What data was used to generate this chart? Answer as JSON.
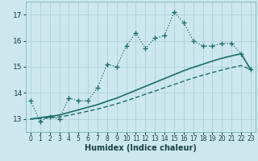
{
  "xlabel": "Humidex (Indice chaleur)",
  "background_color": "#cce8ee",
  "grid_color": "#b0d0d8",
  "line_color": "#1a6e6a",
  "x_values": [
    0,
    1,
    2,
    3,
    4,
    5,
    6,
    7,
    8,
    9,
    10,
    11,
    12,
    13,
    14,
    15,
    16,
    17,
    18,
    19,
    20,
    21,
    22,
    23
  ],
  "y_main": [
    13.7,
    12.9,
    13.1,
    13.0,
    13.8,
    13.7,
    13.7,
    14.2,
    15.1,
    15.0,
    15.8,
    16.3,
    15.7,
    16.1,
    16.2,
    17.1,
    16.7,
    16.0,
    15.8,
    15.8,
    15.9,
    15.9,
    15.5,
    14.9
  ],
  "y_trend1": [
    13.0,
    13.05,
    13.1,
    13.15,
    13.25,
    13.35,
    13.45,
    13.55,
    13.68,
    13.8,
    13.95,
    14.1,
    14.25,
    14.4,
    14.55,
    14.7,
    14.85,
    14.98,
    15.1,
    15.22,
    15.33,
    15.42,
    15.5,
    14.9
  ],
  "y_trend2": [
    13.0,
    13.02,
    13.05,
    13.08,
    13.14,
    13.22,
    13.3,
    13.38,
    13.48,
    13.58,
    13.7,
    13.82,
    13.95,
    14.07,
    14.2,
    14.32,
    14.45,
    14.57,
    14.68,
    14.78,
    14.88,
    14.97,
    15.05,
    14.9
  ],
  "ylim": [
    12.5,
    17.5
  ],
  "xlim": [
    -0.5,
    23.5
  ],
  "yticks": [
    13,
    14,
    15,
    16,
    17
  ],
  "xticks": [
    0,
    1,
    2,
    3,
    4,
    5,
    6,
    7,
    8,
    9,
    10,
    11,
    12,
    13,
    14,
    15,
    16,
    17,
    18,
    19,
    20,
    21,
    22,
    23
  ]
}
